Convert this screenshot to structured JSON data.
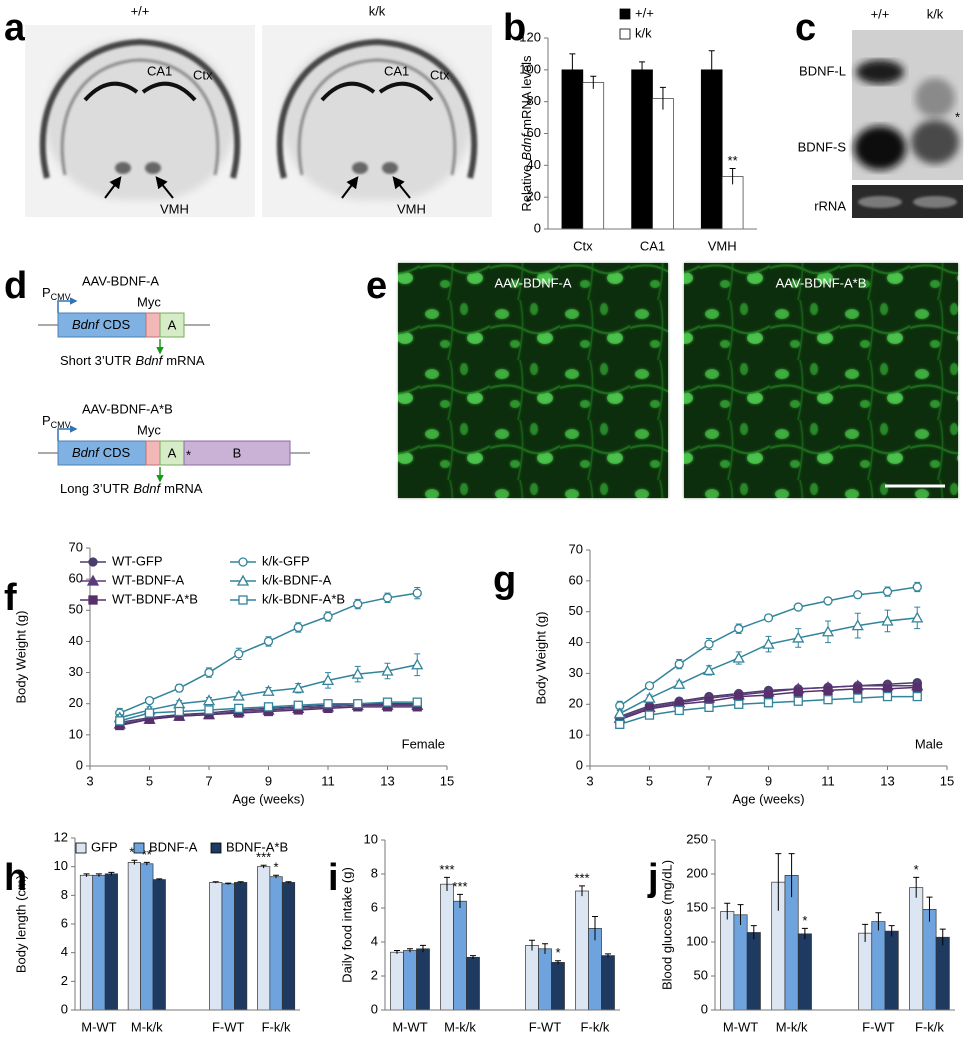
{
  "letters": [
    "a",
    "b",
    "c",
    "d",
    "e",
    "f",
    "g",
    "h",
    "i",
    "j"
  ],
  "images": {
    "a": {
      "genotypes": [
        "+/+",
        "k/k"
      ],
      "regions": [
        "CA1",
        "Ctx",
        "VMH"
      ]
    },
    "c": {
      "genotypes": [
        "+/+",
        "k/k"
      ],
      "bands": [
        "BDNF-L",
        "BDNF-S"
      ],
      "mark": "*",
      "control": "rRNA"
    },
    "e": {
      "labels": [
        "AAV-BDNF-A",
        "AAV-BDNF-A*B"
      ]
    }
  },
  "diagram": {
    "constructs": [
      {
        "name": "AAV-BDNF-A",
        "promoter": "P",
        "promoter_sub": "CMV",
        "cds": [
          "Bdnf",
          "CDS"
        ],
        "tag": "Myc",
        "utr": [
          "A"
        ],
        "product": [
          "Short 3’UTR",
          "Bdnf",
          "mRNA"
        ]
      },
      {
        "name": "AAV-BDNF-A*B",
        "promoter": "P",
        "promoter_sub": "CMV",
        "cds": [
          "Bdnf",
          "CDS"
        ],
        "tag": "Myc",
        "utr": [
          "A",
          "B"
        ],
        "junction": "*",
        "product": [
          "Long 3’UTR",
          "Bdnf",
          "mRNA"
        ]
      }
    ]
  },
  "chart_data": [
    {
      "type": "bar",
      "ylabel": [
        "Relative",
        "Bdnf",
        "mRNA levels"
      ],
      "categories": [
        "Ctx",
        "CA1",
        "VMH"
      ],
      "series": [
        {
          "name": "+/+",
          "color": "#000000",
          "values": [
            100,
            100,
            100
          ],
          "errors": [
            10,
            5,
            12
          ]
        },
        {
          "name": "k/k",
          "color": "#ffffff",
          "values": [
            92,
            82,
            33
          ],
          "errors": [
            4,
            7,
            5
          ],
          "stars": [
            null,
            null,
            "**"
          ]
        }
      ],
      "ylim": [
        0,
        120
      ],
      "yticks": [
        0,
        20,
        40,
        60,
        80,
        100,
        120
      ],
      "legend": "top-right"
    },
    {
      "type": "line",
      "xlabel": "Age (weeks)",
      "ylabel": "Body Weight (g)",
      "note": "Female",
      "x": [
        4,
        5,
        6,
        7,
        8,
        9,
        10,
        11,
        12,
        13,
        14
      ],
      "series": [
        {
          "name": "WT-GFP",
          "color": "#4a3d6e",
          "marker": "circle",
          "filled": true,
          "values": [
            14,
            15.5,
            16.5,
            17,
            18,
            18.5,
            19,
            19.5,
            20,
            20,
            20
          ]
        },
        {
          "name": "WT-BDNF-A",
          "color": "#5a3c7c",
          "marker": "triangle",
          "filled": true,
          "values": [
            13.5,
            15,
            16,
            16.5,
            17.5,
            18,
            18.5,
            19,
            19.5,
            19.5,
            19.5
          ]
        },
        {
          "name": "WT-BDNF-A*B",
          "color": "#57306b",
          "marker": "square",
          "filled": true,
          "values": [
            13,
            15,
            16,
            16.5,
            17,
            17.5,
            18,
            18.5,
            19,
            19,
            19
          ]
        },
        {
          "name": "k/k-GFP",
          "color": "#31849b",
          "marker": "circle",
          "filled": false,
          "values": [
            17,
            21,
            25,
            30,
            36,
            40,
            44.5,
            48,
            52,
            54,
            55.5
          ],
          "errors": [
            1.5,
            0.8,
            1.2,
            1.5,
            1.8,
            1.5,
            1.5,
            1.5,
            1.5,
            1.5,
            1.8
          ]
        },
        {
          "name": "k/k-BDNF-A",
          "color": "#31849b",
          "marker": "triangle",
          "filled": false,
          "values": [
            15.5,
            18,
            20,
            21,
            22.5,
            24,
            25,
            27.5,
            29.5,
            30.5,
            32.5
          ],
          "errors": [
            1,
            1,
            1,
            1,
            1,
            1.2,
            1.5,
            2.5,
            2.5,
            2.5,
            3.5
          ]
        },
        {
          "name": "k/k-BDNF-A*B",
          "color": "#31849b",
          "marker": "square",
          "filled": false,
          "values": [
            14.5,
            17,
            17.5,
            18,
            18.5,
            19,
            19.5,
            20,
            20,
            20.5,
            20.5
          ]
        }
      ],
      "xlim": [
        3,
        15
      ],
      "xticks": [
        3,
        5,
        7,
        9,
        11,
        13,
        15
      ],
      "ylim": [
        0,
        70
      ],
      "yticks": [
        0,
        10,
        20,
        30,
        40,
        50,
        60,
        70
      ],
      "legend": "top-left"
    },
    {
      "type": "line",
      "xlabel": "Age (weeks)",
      "ylabel": "Body Weight (g)",
      "note": "Male",
      "x": [
        4,
        5,
        6,
        7,
        8,
        9,
        10,
        11,
        12,
        13,
        14
      ],
      "series": [
        {
          "color": "#4a3d6e",
          "marker": "circle",
          "filled": true,
          "values": [
            16,
            19.5,
            21,
            22.5,
            23.5,
            24.5,
            25,
            25.5,
            26,
            26.5,
            27
          ]
        },
        {
          "color": "#5a3c7c",
          "marker": "triangle",
          "filled": true,
          "values": [
            15.5,
            19,
            20.5,
            22,
            23,
            24,
            25,
            25.5,
            26,
            26,
            26
          ]
        },
        {
          "color": "#57306b",
          "marker": "square",
          "filled": true,
          "values": [
            15,
            18.5,
            20,
            21,
            22.5,
            23,
            24,
            24.5,
            25,
            25,
            25.5
          ]
        },
        {
          "color": "#31849b",
          "marker": "circle",
          "filled": false,
          "values": [
            19.5,
            26,
            33,
            39.5,
            44.5,
            48,
            51.5,
            53.5,
            55.5,
            56.5,
            58
          ],
          "errors": [
            1.5,
            1,
            1.5,
            1.8,
            1.5,
            1,
            1,
            1,
            1,
            1.5,
            1.5
          ]
        },
        {
          "color": "#31849b",
          "marker": "triangle",
          "filled": false,
          "values": [
            17,
            22,
            26.5,
            31,
            35,
            39.5,
            41.5,
            43.5,
            45.5,
            47,
            48
          ],
          "errors": [
            1.5,
            1,
            1,
            1.5,
            2,
            2.5,
            3,
            3.5,
            4,
            3.5,
            3.5
          ]
        },
        {
          "color": "#31849b",
          "marker": "square",
          "filled": false,
          "values": [
            13.5,
            16.5,
            18,
            19,
            20,
            20.5,
            21,
            21.5,
            22,
            22.5,
            22.5
          ]
        }
      ],
      "xlim": [
        3,
        15
      ],
      "xticks": [
        3,
        5,
        7,
        9,
        11,
        13,
        15
      ],
      "ylim": [
        0,
        70
      ],
      "yticks": [
        0,
        10,
        20,
        30,
        40,
        50,
        60,
        70
      ]
    },
    {
      "type": "bar",
      "ylabel": "Body length (cm)",
      "categories": [
        "M-WT",
        "M-k/k",
        "F-WT",
        "F-k/k"
      ],
      "series": [
        {
          "name": "GFP",
          "color": "#dce6f2",
          "values": [
            9.4,
            10.3,
            8.9,
            10.0
          ],
          "errors": [
            0.1,
            0.15,
            0.05,
            0.1
          ],
          "stars": [
            null,
            "**",
            null,
            "***"
          ]
        },
        {
          "name": "BDNF-A",
          "color": "#6fa3de",
          "values": [
            9.4,
            10.2,
            8.8,
            9.3
          ],
          "errors": [
            0.1,
            0.1,
            0.05,
            0.1
          ],
          "stars": [
            null,
            "**",
            null,
            "*"
          ]
        },
        {
          "name": "BDNF-A*B",
          "color": "#1f3a60",
          "values": [
            9.5,
            9.1,
            8.9,
            8.9
          ],
          "errors": [
            0.1,
            0.05,
            0.05,
            0.05
          ]
        }
      ],
      "ylim": [
        0,
        12
      ],
      "yticks": [
        0,
        2,
        4,
        6,
        8,
        10,
        12
      ],
      "legend": "top"
    },
    {
      "type": "bar",
      "ylabel": "Daily food intake (g)",
      "categories": [
        "M-WT",
        "M-k/k",
        "F-WT",
        "F-k/k"
      ],
      "series": [
        {
          "color": "#dce6f2",
          "values": [
            3.4,
            7.4,
            3.8,
            7.0
          ],
          "errors": [
            0.1,
            0.4,
            0.3,
            0.3
          ],
          "stars": [
            null,
            "***",
            null,
            "***"
          ]
        },
        {
          "color": "#6fa3de",
          "values": [
            3.5,
            6.4,
            3.6,
            4.8
          ],
          "errors": [
            0.1,
            0.4,
            0.3,
            0.7
          ],
          "stars": [
            null,
            "***",
            null,
            null
          ]
        },
        {
          "color": "#1f3a60",
          "values": [
            3.6,
            3.1,
            2.8,
            3.2
          ],
          "errors": [
            0.2,
            0.1,
            0.1,
            0.1
          ],
          "stars": [
            null,
            null,
            "*",
            null
          ]
        }
      ],
      "ylim": [
        0,
        10
      ],
      "yticks": [
        0,
        2,
        4,
        6,
        8,
        10
      ]
    },
    {
      "type": "bar",
      "ylabel": "Blood glucose (mg/dL)",
      "categories": [
        "M-WT",
        "M-k/k",
        "F-WT",
        "F-k/k"
      ],
      "series": [
        {
          "color": "#dce6f2",
          "values": [
            145,
            188,
            113,
            180
          ],
          "errors": [
            12,
            42,
            13,
            15
          ],
          "stars": [
            null,
            null,
            null,
            "*"
          ]
        },
        {
          "color": "#6fa3de",
          "values": [
            140,
            198,
            130,
            148
          ],
          "errors": [
            15,
            32,
            13,
            18
          ]
        },
        {
          "color": "#1f3a60",
          "values": [
            114,
            112,
            116,
            107
          ],
          "errors": [
            10,
            8,
            8,
            12
          ],
          "stars": [
            null,
            "*",
            null,
            null
          ]
        }
      ],
      "ylim": [
        0,
        250
      ],
      "yticks": [
        0,
        50,
        100,
        150,
        200,
        250
      ]
    }
  ]
}
